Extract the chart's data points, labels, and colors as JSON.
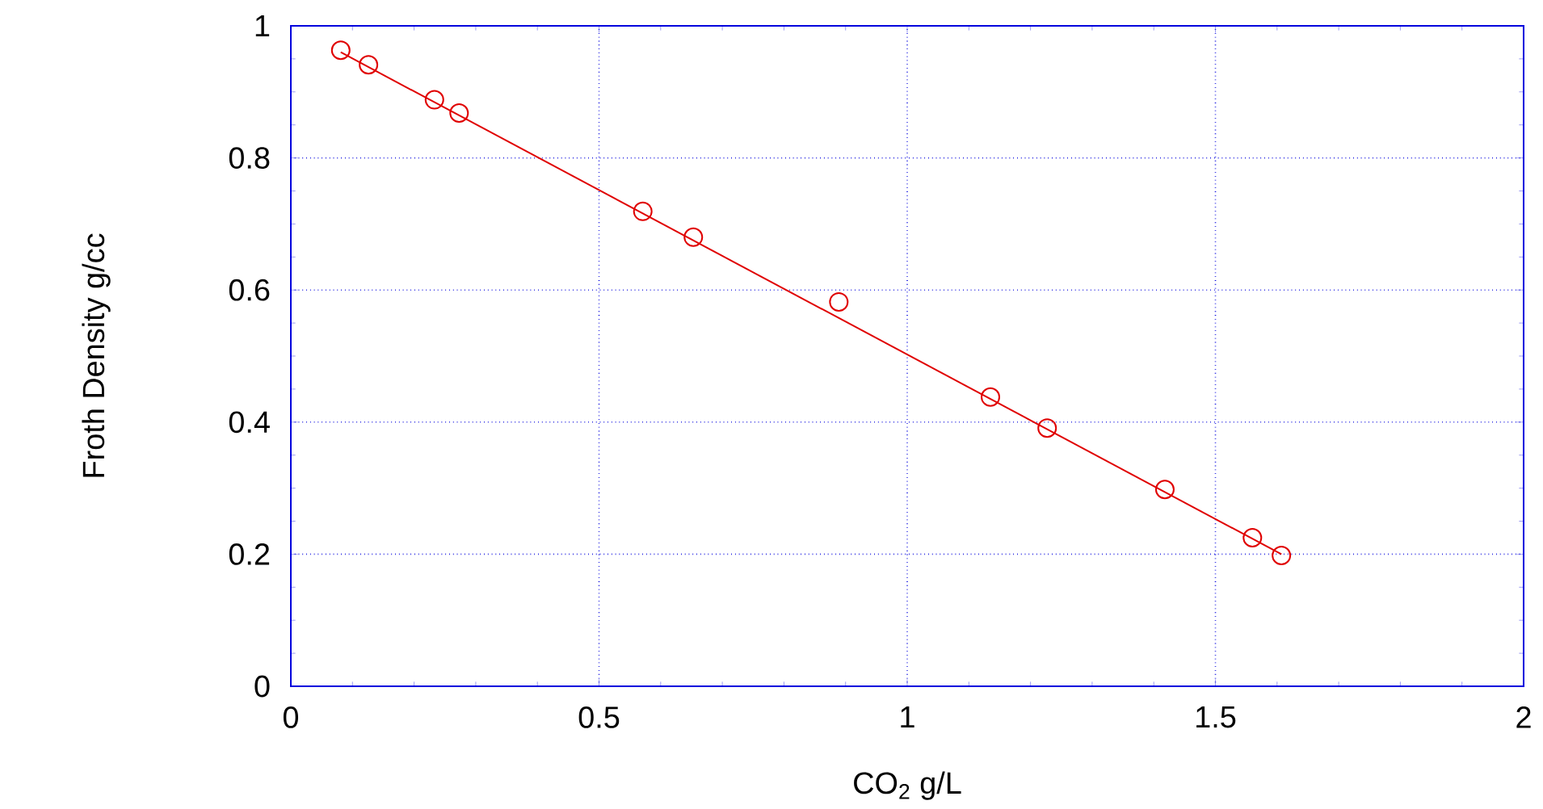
{
  "chart_data": {
    "type": "scatter",
    "xlabel": "CO$_{2}$ g/L",
    "ylabel": "Froth Density g/cc",
    "xlim": [
      0,
      2
    ],
    "ylim": [
      0,
      1
    ],
    "xticks": [
      0,
      0.5,
      1,
      1.5,
      2
    ],
    "yticks": [
      0,
      0.2,
      0.4,
      0.6,
      0.8,
      1
    ],
    "grid": true,
    "series": [
      {
        "marker": "circle",
        "color": "#e00000",
        "x": [
          0.081,
          0.126,
          0.233,
          0.273,
          0.571,
          0.653,
          0.889,
          1.135,
          1.227,
          1.418,
          1.56,
          1.607
        ],
        "values": [
          0.963,
          0.941,
          0.888,
          0.868,
          0.719,
          0.68,
          0.582,
          0.438,
          0.391,
          0.298,
          0.225,
          0.198
        ]
      },
      {
        "type": "line",
        "color": "#e00000",
        "line_style": "solid",
        "x": [
          0.081,
          1.607
        ],
        "values": [
          0.96,
          0.2
        ]
      }
    ]
  }
}
